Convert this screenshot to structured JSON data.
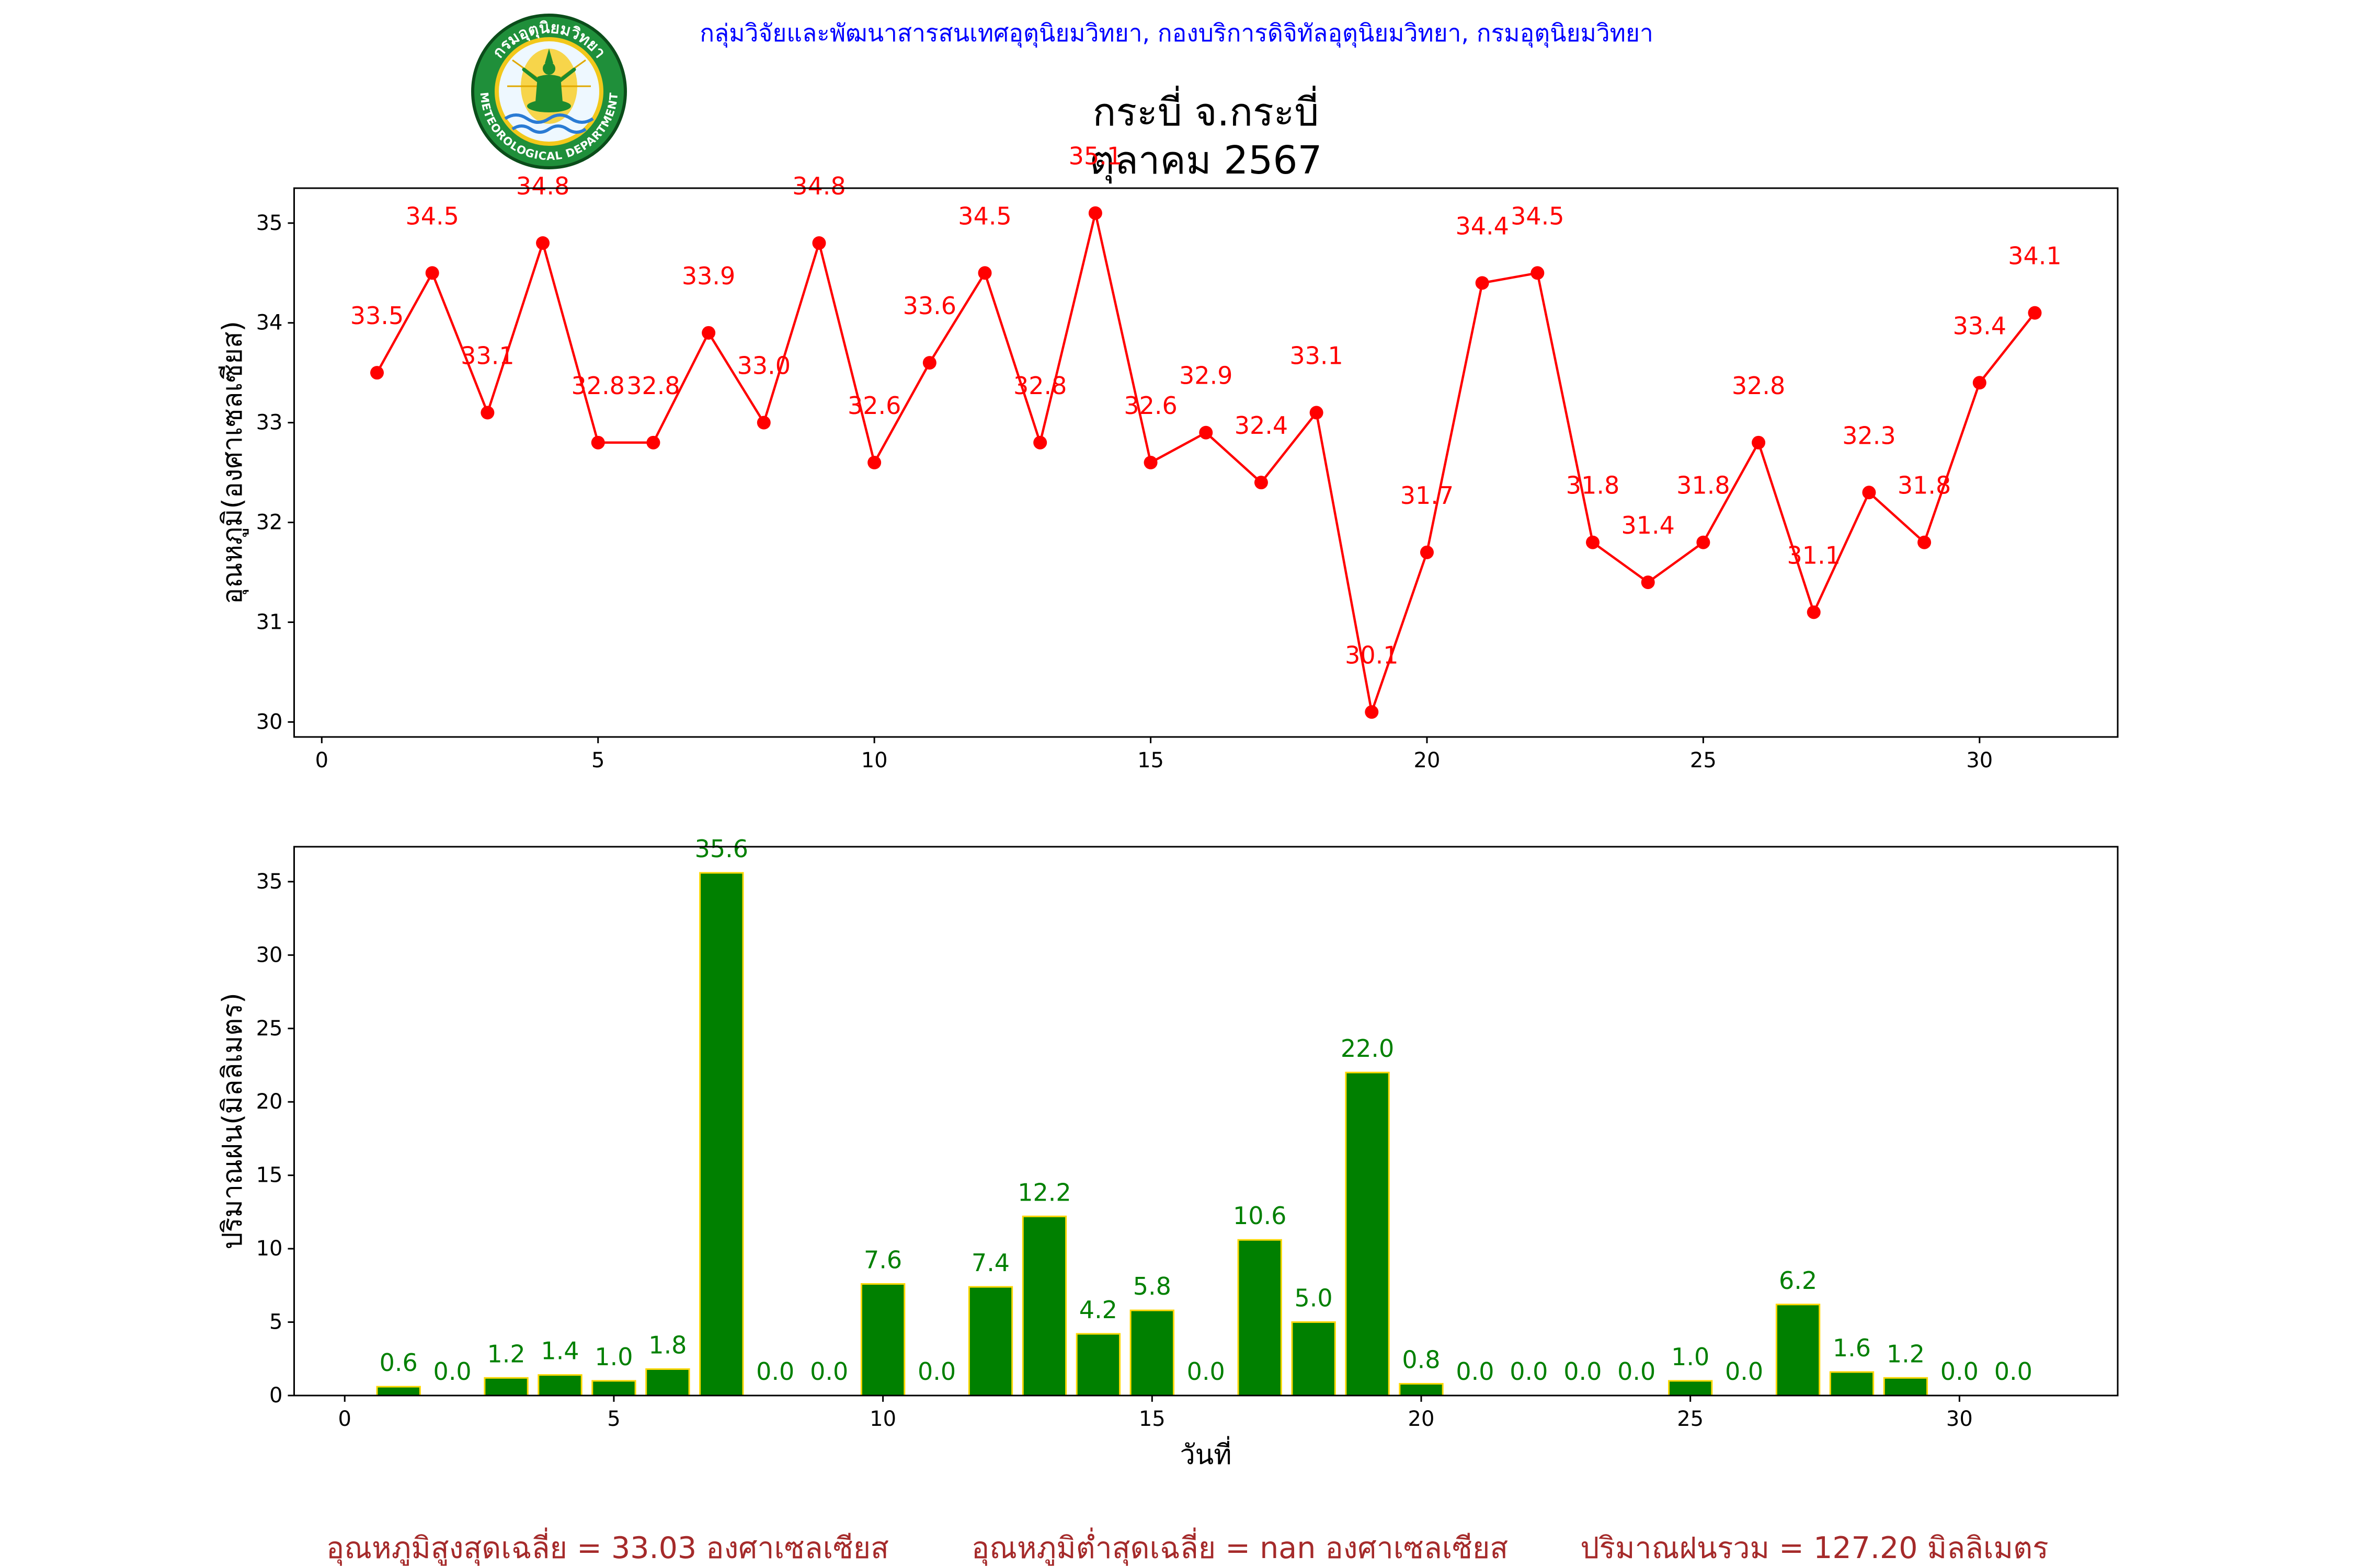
{
  "header": {
    "text": "กลุ่มวิจัยและพัฒนาสารสนเทศอุตุนิยมวิทยา, กองบริการดิจิทัลอุตุนิยมวิทยา, กรมอุตุนิยมวิทยา",
    "color": "#0000ff"
  },
  "logo": {
    "icon": "meteorological-department-seal",
    "text_top": "กรมอุตุนิยมวิทยา",
    "text_bottom": "METEOROLOGICAL DEPARTMENT"
  },
  "chart_data": [
    {
      "type": "line",
      "title": "กระบี่ จ.กระบี่",
      "subtitle": "ตุลาคม 2567",
      "xlabel": "",
      "ylabel": "อุณหภูมิ(องศาเซลเซียส)",
      "x": [
        1,
        2,
        3,
        4,
        5,
        6,
        7,
        8,
        9,
        10,
        11,
        12,
        13,
        14,
        15,
        16,
        17,
        18,
        19,
        20,
        21,
        22,
        23,
        24,
        25,
        26,
        27,
        28,
        29,
        30,
        31
      ],
      "series": [
        {
          "values": [
            33.5,
            34.5,
            33.1,
            34.8,
            32.8,
            32.8,
            33.9,
            33.0,
            34.8,
            32.6,
            33.6,
            34.5,
            32.8,
            35.1,
            32.6,
            32.9,
            32.4,
            33.1,
            30.1,
            31.7,
            34.4,
            34.5,
            31.8,
            31.4,
            31.8,
            32.8,
            31.1,
            32.3,
            31.8,
            33.4,
            34.1
          ],
          "value_labels": [
            "33.5",
            "34.5",
            "33.1",
            "34.8",
            "32.8",
            "32.8",
            "33.9",
            "33.0",
            "34.8",
            "32.6",
            "33.6",
            "34.5",
            "32.8",
            "35.1",
            "32.6",
            "32.9",
            "32.4",
            "33.1",
            "30.1",
            "31.7",
            "34.4",
            "34.5",
            "31.8",
            "31.4",
            "31.8",
            "32.8",
            "31.1",
            "32.3",
            "31.8",
            "33.4",
            "34.1"
          ],
          "color": "#ff0000"
        }
      ],
      "xlim": [
        -0.5,
        32.5
      ],
      "ylim": [
        29.85,
        35.35
      ],
      "xticks": [
        0,
        5,
        10,
        15,
        20,
        25,
        30
      ],
      "yticks": [
        30,
        31,
        32,
        33,
        34,
        35
      ],
      "grid": false
    },
    {
      "type": "bar",
      "xlabel": "วันที่",
      "ylabel": "ปริมาณฝน(มิลลิเมตร)",
      "x": [
        1,
        2,
        3,
        4,
        5,
        6,
        7,
        8,
        9,
        10,
        11,
        12,
        13,
        14,
        15,
        16,
        17,
        18,
        19,
        20,
        21,
        22,
        23,
        24,
        25,
        26,
        27,
        28,
        29,
        30,
        31
      ],
      "series": [
        {
          "values": [
            0.6,
            0.0,
            1.2,
            1.4,
            1.0,
            1.8,
            35.6,
            0.0,
            0.0,
            7.6,
            0.0,
            7.4,
            12.2,
            4.2,
            5.8,
            0.0,
            10.6,
            5.0,
            22.0,
            0.8,
            0.0,
            0.0,
            0.0,
            0.0,
            1.0,
            0.0,
            6.2,
            1.6,
            1.2,
            0.0,
            0.0
          ],
          "value_labels": [
            "0.6",
            "0.0",
            "1.2",
            "1.4",
            "1.0",
            "1.8",
            "35.6",
            "0.0",
            "0.0",
            "7.6",
            "0.0",
            "7.4",
            "12.2",
            "4.2",
            "5.8",
            "0.0",
            "10.6",
            "5.0",
            "22.0",
            "0.8",
            "0.0",
            "0.0",
            "0.0",
            "0.0",
            "1.0",
            "0.0",
            "6.2",
            "1.6",
            "1.2",
            "0.0",
            "0.0"
          ],
          "color": "#008000",
          "edge_color": "#ffd700"
        }
      ],
      "xlim": [
        -0.94,
        32.94
      ],
      "ylim": [
        0,
        37.38
      ],
      "xticks": [
        0,
        5,
        10,
        15,
        20,
        25,
        30
      ],
      "yticks": [
        0,
        5,
        10,
        15,
        20,
        25,
        30,
        35
      ],
      "grid": false
    }
  ],
  "summary": {
    "avg_max_temp": "อุณหภูมิสูงสุดเฉลี่ย = 33.03 องศาเซลเซียส",
    "avg_min_temp": "อุณหภูมิต่ำสุดเฉลี่ย = nan องศาเซลเซียส",
    "total_rainfall": "ปริมาณฝนรวม = 127.20 มิลลิเมตร",
    "color": "#a52a2a"
  }
}
